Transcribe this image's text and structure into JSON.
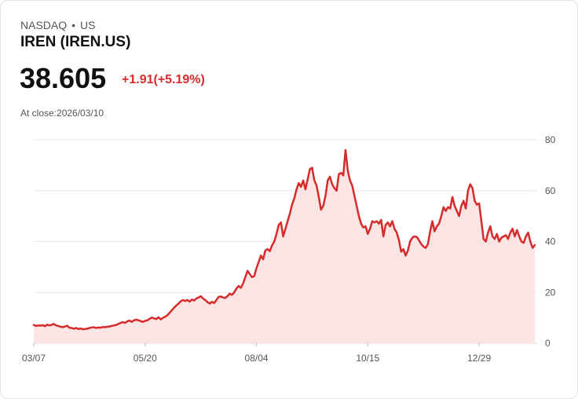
{
  "header": {
    "exchange": "NASDAQ",
    "region": "US",
    "separator": "•",
    "title": "IREN (IREN.US)",
    "price": "38.605",
    "change": "+1.91(+5.19%)",
    "close_label": "At close:2026/03/10"
  },
  "colors": {
    "line": "#d62b2b",
    "fill": "#fbe4e4",
    "grid": "#e6e6e6",
    "change": "#d62b2b"
  },
  "chart_data": {
    "type": "area",
    "title": "IREN (IREN.US)",
    "xlabel": "",
    "ylabel": "",
    "ylim": [
      0,
      80
    ],
    "yticks": [
      "0",
      "20",
      "40",
      "60",
      "80"
    ],
    "ytick_values": [
      0,
      20,
      40,
      60,
      80
    ],
    "xticks": [
      "03/07",
      "05/20",
      "08/04",
      "10/15",
      "12/29"
    ],
    "xtick_index": [
      0,
      50,
      100,
      150,
      200
    ],
    "series": [
      {
        "name": "IREN",
        "values": [
          7.2,
          6.8,
          7.0,
          6.9,
          7.1,
          6.7,
          7.3,
          7.0,
          7.2,
          7.6,
          7.0,
          6.8,
          6.5,
          6.3,
          6.6,
          6.9,
          6.1,
          6.0,
          5.7,
          6.0,
          5.6,
          5.8,
          5.5,
          5.6,
          5.7,
          6.0,
          6.2,
          6.3,
          6.0,
          6.2,
          6.1,
          6.4,
          6.3,
          6.5,
          6.6,
          6.8,
          7.0,
          7.2,
          7.6,
          8.0,
          8.3,
          8.0,
          8.6,
          8.9,
          8.4,
          9.0,
          9.3,
          9.0,
          8.7,
          8.4,
          8.8,
          9.0,
          9.6,
          10.1,
          9.8,
          9.5,
          10.2,
          9.4,
          10.0,
          10.4,
          11.0,
          12.0,
          13.0,
          14.0,
          14.8,
          15.6,
          16.5,
          17.0,
          16.6,
          17.0,
          16.4,
          17.2,
          16.8,
          17.6,
          18.0,
          18.5,
          17.6,
          17.0,
          16.2,
          15.6,
          16.3,
          15.8,
          17.0,
          18.2,
          18.4,
          18.0,
          17.8,
          18.5,
          19.5,
          19.0,
          20.0,
          21.5,
          22.5,
          21.8,
          23.5,
          26.0,
          28.5,
          27.2,
          26.0,
          26.4,
          29.5,
          32.0,
          34.5,
          33.0,
          36.5,
          37.0,
          36.2,
          38.5,
          40.0,
          43.0,
          46.5,
          47.5,
          42.0,
          45.0,
          48.0,
          51.0,
          54.5,
          57.0,
          60.5,
          63.0,
          61.5,
          64.0,
          60.5,
          64.5,
          68.5,
          69.0,
          64.0,
          62.0,
          57.5,
          52.5,
          54.0,
          58.0,
          64.0,
          65.5,
          62.5,
          61.0,
          60.0,
          66.5,
          67.0,
          66.0,
          76.0,
          68.0,
          64.0,
          62.0,
          58.0,
          54.0,
          50.0,
          47.0,
          45.5,
          46.0,
          43.0,
          45.0,
          48.0,
          47.5,
          48.0,
          47.0,
          48.5,
          42.0,
          46.5,
          47.5,
          46.0,
          48.0,
          45.0,
          43.5,
          40.5,
          36.0,
          37.0,
          34.5,
          36.5,
          40.0,
          41.5,
          42.0,
          41.8,
          40.5,
          39.0,
          38.0,
          37.5,
          39.0,
          44.0,
          48.0,
          44.0,
          46.0,
          47.0,
          50.0,
          53.5,
          52.0,
          53.5,
          53.0,
          57.5,
          54.0,
          52.0,
          50.0,
          54.0,
          56.0,
          53.0,
          60.0,
          62.5,
          61.0,
          56.0,
          54.5,
          55.0,
          48.0,
          41.0,
          40.0,
          43.5,
          46.0,
          42.0,
          41.0,
          43.0,
          40.0,
          41.5,
          42.0,
          42.5,
          41.0,
          43.5,
          45.0,
          42.0,
          44.5,
          42.0,
          40.0,
          39.5,
          42.0,
          43.5,
          40.0,
          37.5,
          38.605
        ]
      }
    ]
  }
}
